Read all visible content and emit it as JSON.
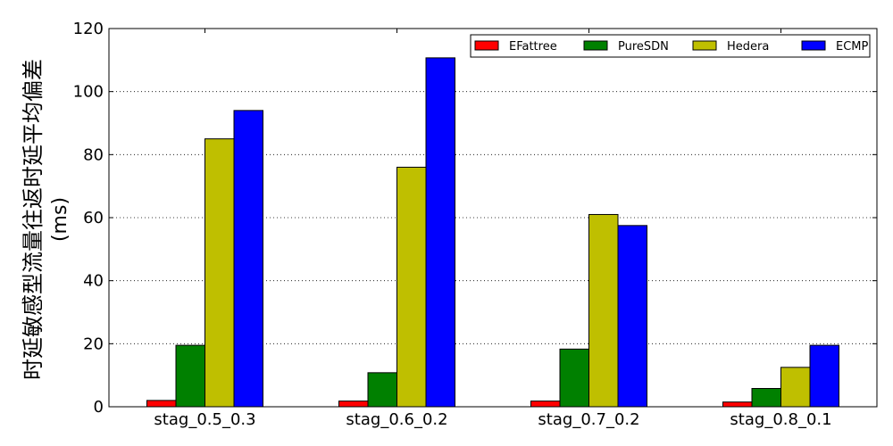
{
  "chart_data": {
    "type": "bar",
    "title": "",
    "xlabel": "",
    "ylabel": "时延敏感型流量往返时延平均偏差",
    "ylabel_unit": "(ms)",
    "categories": [
      "stag_0.5_0.3",
      "stag_0.6_0.2",
      "stag_0.7_0.2",
      "stag_0.8_0.1"
    ],
    "ylim": [
      0,
      120
    ],
    "yticks": [
      0,
      20,
      40,
      60,
      80,
      100,
      120
    ],
    "ytick_labels": [
      "0",
      "20",
      "40",
      "60",
      "80",
      "100",
      "120"
    ],
    "grid": "y-dotted",
    "legend_position": "top-right",
    "series": [
      {
        "name": "EFattree",
        "color": "#ff0000",
        "values": [
          2.0,
          1.8,
          1.8,
          1.5
        ]
      },
      {
        "name": "PureSDN",
        "color": "#008000",
        "values": [
          19.5,
          10.8,
          18.3,
          5.8
        ]
      },
      {
        "name": "Hedera",
        "color": "#bfbf00",
        "values": [
          85.0,
          76.0,
          61.0,
          12.5
        ]
      },
      {
        "name": "ECMP",
        "color": "#0000ff",
        "values": [
          94.0,
          110.7,
          57.5,
          19.5
        ]
      }
    ]
  }
}
